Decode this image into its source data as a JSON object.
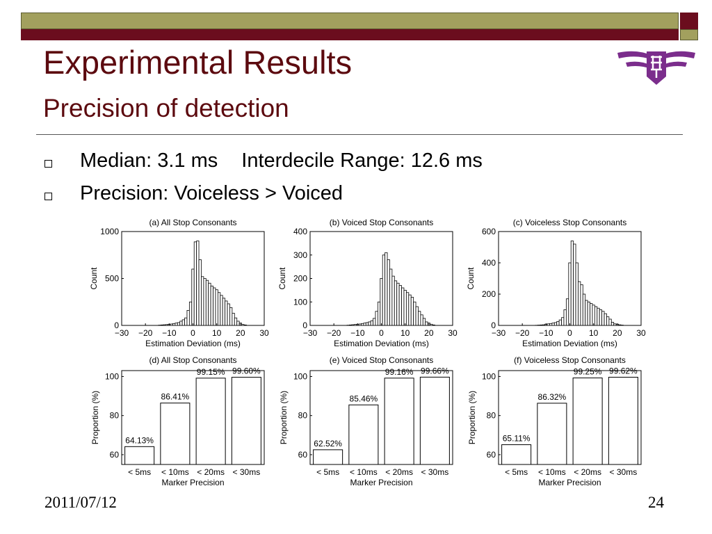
{
  "slide": {
    "title": "Experimental Results",
    "subtitle": "Precision of detection",
    "bullets": [
      {
        "parts": [
          "Median: 3.1 ms",
          "Interdecile Range: 12.6 ms"
        ]
      },
      {
        "parts": [
          "Precision: Voiceless > Voiced"
        ]
      }
    ],
    "date": "2011/07/12",
    "page_number": "24"
  },
  "colors": {
    "title": "#5c0a0f",
    "bar_olive": "#a2a05e",
    "bar_red": "#6b0d1e",
    "logo_purple": "#7b2d8c"
  },
  "chart_data": [
    {
      "type": "bar",
      "title": "(a) All Stop Consonants",
      "xlabel": "Estimation Deviation (ms)",
      "ylabel": "Count",
      "xlim": [
        -30,
        30
      ],
      "ylim": [
        0,
        1000
      ],
      "xticks": [
        "−30",
        "−20",
        "−10",
        "0",
        "10",
        "20",
        "30"
      ],
      "yticks": [
        "0",
        "500",
        "1000"
      ],
      "bin_width": 1,
      "x": [
        -14,
        -13,
        -12,
        -11,
        -10,
        -9,
        -8,
        -7,
        -6,
        -5,
        -4,
        -3,
        -2,
        -1,
        0,
        1,
        2,
        3,
        4,
        5,
        6,
        7,
        8,
        9,
        10,
        11,
        12,
        13,
        14,
        15,
        16,
        17,
        18,
        19,
        20,
        21,
        22
      ],
      "values": [
        3,
        5,
        7,
        9,
        12,
        15,
        20,
        25,
        30,
        45,
        60,
        80,
        160,
        250,
        600,
        890,
        900,
        700,
        520,
        500,
        480,
        450,
        420,
        400,
        380,
        350,
        320,
        290,
        260,
        230,
        190,
        130,
        80,
        45,
        25,
        10,
        5
      ]
    },
    {
      "type": "bar",
      "title": "(b) Voiced Stop Consonants",
      "xlabel": "Estimation Deviation (ms)",
      "ylabel": "Count",
      "xlim": [
        -30,
        30
      ],
      "ylim": [
        0,
        400
      ],
      "xticks": [
        "−30",
        "−20",
        "−10",
        "0",
        "10",
        "20",
        "30"
      ],
      "yticks": [
        "0",
        "100",
        "200",
        "300",
        "400"
      ],
      "bin_width": 1,
      "x": [
        -14,
        -13,
        -12,
        -11,
        -10,
        -9,
        -8,
        -7,
        -6,
        -5,
        -4,
        -3,
        -2,
        -1,
        0,
        1,
        2,
        3,
        4,
        5,
        6,
        7,
        8,
        9,
        10,
        11,
        12,
        13,
        14,
        15,
        16,
        17,
        18,
        19,
        20,
        21,
        22
      ],
      "values": [
        1,
        2,
        3,
        4,
        5,
        6,
        8,
        10,
        12,
        15,
        20,
        30,
        60,
        100,
        200,
        300,
        310,
        280,
        240,
        210,
        190,
        180,
        170,
        160,
        150,
        140,
        130,
        120,
        100,
        80,
        60,
        45,
        30,
        15,
        10,
        5,
        2
      ]
    },
    {
      "type": "bar",
      "title": "(c) Voiceless Stop Consonants",
      "xlabel": "Estimation Deviation (ms)",
      "ylabel": "Count",
      "xlim": [
        -30,
        30
      ],
      "ylim": [
        0,
        600
      ],
      "xticks": [
        "−30",
        "−20",
        "−10",
        "0",
        "10",
        "20",
        "30"
      ],
      "yticks": [
        "0",
        "200",
        "400",
        "600"
      ],
      "bin_width": 1,
      "x": [
        -14,
        -13,
        -12,
        -11,
        -10,
        -9,
        -8,
        -7,
        -6,
        -5,
        -4,
        -3,
        -2,
        -1,
        0,
        1,
        2,
        3,
        4,
        5,
        6,
        7,
        8,
        9,
        10,
        11,
        12,
        13,
        14,
        15,
        16,
        17,
        18,
        19,
        20,
        21,
        22
      ],
      "values": [
        1,
        2,
        3,
        4,
        8,
        10,
        12,
        15,
        18,
        25,
        35,
        50,
        100,
        170,
        400,
        540,
        520,
        400,
        280,
        260,
        200,
        160,
        150,
        140,
        130,
        120,
        110,
        100,
        90,
        75,
        55,
        40,
        20,
        10,
        8,
        4,
        2
      ]
    },
    {
      "type": "bar",
      "title": "(d) All Stop Consonants",
      "xlabel": "Marker Precision",
      "ylabel": "Proportion (%)",
      "ylim": [
        55,
        103
      ],
      "yticks": [
        "60",
        "80",
        "100"
      ],
      "categories": [
        "< 5ms",
        "< 10ms",
        "< 20ms",
        "< 30ms"
      ],
      "values": [
        64.13,
        86.41,
        99.15,
        99.6
      ],
      "labels": [
        "64.13%",
        "86.41%",
        "99.15%",
        "99.60%"
      ]
    },
    {
      "type": "bar",
      "title": "(e) Voiced Stop Consonants",
      "xlabel": "Marker Precision",
      "ylabel": "Proportion (%)",
      "ylim": [
        55,
        103
      ],
      "yticks": [
        "60",
        "80",
        "100"
      ],
      "categories": [
        "< 5ms",
        "< 10ms",
        "< 20ms",
        "< 30ms"
      ],
      "values": [
        62.52,
        85.46,
        99.16,
        99.66
      ],
      "labels": [
        "62.52%",
        "85.46%",
        "99.16%",
        "99.66%"
      ]
    },
    {
      "type": "bar",
      "title": "(f) Voiceless Stop Consonants",
      "xlabel": "Marker Precision",
      "ylabel": "Proportion (%)",
      "ylim": [
        55,
        103
      ],
      "yticks": [
        "60",
        "80",
        "100"
      ],
      "categories": [
        "< 5ms",
        "< 10ms",
        "< 20ms",
        "< 30ms"
      ],
      "values": [
        65.11,
        86.32,
        99.25,
        99.62
      ],
      "labels": [
        "65.11%",
        "86.32%",
        "99.25%",
        "99.62%"
      ]
    }
  ]
}
